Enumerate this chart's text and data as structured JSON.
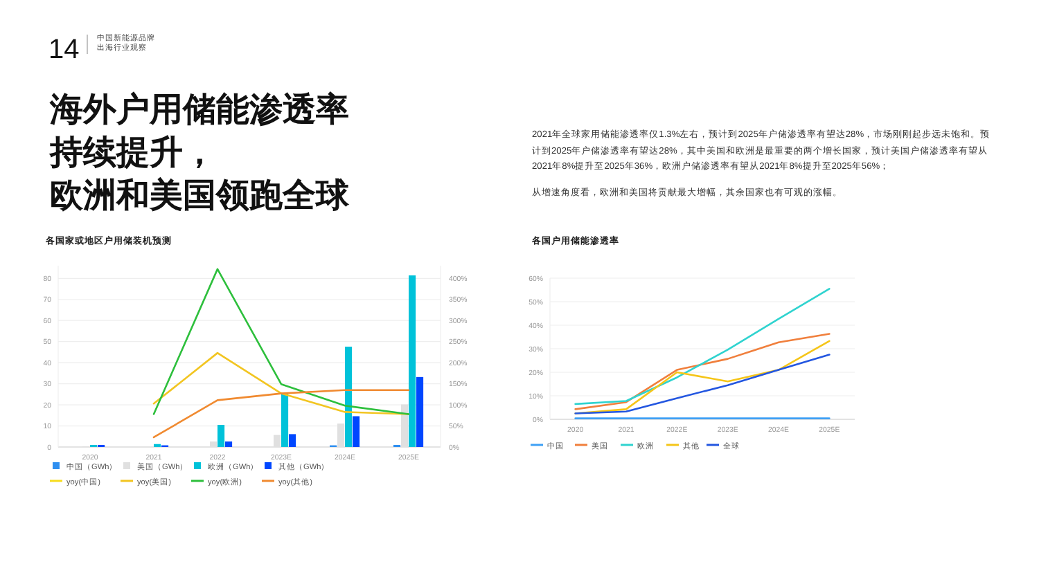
{
  "chart_data": [
    {
      "type": "bar",
      "title": "各国家或地区户用储装机预测",
      "annotations": [
        "14",
        "中国新能源品牌",
        "出海行业观察",
        "海外户用储能渗透率",
        "持续提升，",
        "欧洲和美国领跑全球",
        "2021年全球家用储能渗透率仅1.3%左右，预计到2025年户储渗透率有望达28%，市场刚刚起步远未饱和。预计到2025年户储渗透率有望达28%，其中美国和欧洲是最重要的两个增长国家，预计美国户储渗透率有望从2021年8%提升至2025年36%，欧洲户储渗透率有望从2021年8%提升至2025年56%；",
        "从增速角度看，欧洲和美国将贡献最大增幅，其余国家也有可观的涨幅。"
      ],
      "categories": [
        "2020",
        "2021",
        "2022",
        "2023E",
        "2024E",
        "2025E"
      ],
      "series": [
        {
          "name": "中国（GWh）",
          "color": "#2f8ff0",
          "values": [
            null,
            null,
            null,
            null,
            0.8,
            1.0
          ]
        },
        {
          "name": "美国（GWh）",
          "color": "#e0e0e0",
          "values": [
            0.3,
            null,
            2.6,
            5.7,
            11.1,
            20.2
          ]
        },
        {
          "name": "欧洲（GWh）",
          "color": "#00c2d9",
          "values": [
            1.0,
            1.4,
            10.5,
            25.3,
            47.6,
            81.4
          ]
        },
        {
          "name": "其他（GWh）",
          "color": "#0047ff",
          "values": [
            1.0,
            0.8,
            2.6,
            6.1,
            14.6,
            33.2
          ]
        },
        {
          "name": "yoy(中国)",
          "type": "line",
          "axis": "y2",
          "color": "#f7dc1e",
          "values": [
            null,
            null,
            null,
            null,
            null,
            null
          ]
        },
        {
          "name": "yoy(美国)",
          "type": "line",
          "axis": "y2",
          "color": "#f2c521",
          "values": [
            null,
            103,
            223,
            127,
            83,
            78
          ]
        },
        {
          "name": "yoy(欧洲)",
          "type": "line",
          "axis": "y2",
          "color": "#2dbf3c",
          "values": [
            null,
            78,
            422,
            149,
            98,
            78
          ]
        },
        {
          "name": "yoy(其他)",
          "type": "line",
          "axis": "y2",
          "color": "#f08a30",
          "values": [
            null,
            23,
            111,
            127,
            135,
            135
          ]
        }
      ],
      "ylim": [
        0,
        86
      ],
      "yticks": [
        0,
        10,
        20,
        30,
        40,
        50,
        60,
        70,
        80
      ],
      "y2lim": [
        0,
        430
      ],
      "y2ticks": [
        {
          "value": 0,
          "label": "0%"
        },
        {
          "value": 50,
          "label": "50%"
        },
        {
          "value": 100,
          "label": "100%"
        },
        {
          "value": 150,
          "label": "150%"
        },
        {
          "value": 200,
          "label": "200%"
        },
        {
          "value": 250,
          "label": "250%"
        },
        {
          "value": 300,
          "label": "300%"
        },
        {
          "value": 350,
          "label": "350%"
        },
        {
          "value": 400,
          "label": "400%"
        }
      ],
      "grid": "y",
      "legend": "bottom"
    },
    {
      "type": "line",
      "title": "各国户用储能渗透率",
      "categories": [
        "2020",
        "2021",
        "2022E",
        "2023E",
        "2024E",
        "2025E"
      ],
      "series": [
        {
          "name": "中国",
          "color": "#3ea0f5",
          "values": [
            0.4,
            0.4,
            0.4,
            0.4,
            0.4,
            0.4
          ]
        },
        {
          "name": "美国",
          "color": "#f07f3c",
          "values": [
            4.3,
            7.3,
            21,
            25.7,
            32.7,
            36.3
          ]
        },
        {
          "name": "欧洲",
          "color": "#2fd3cf",
          "values": [
            6.5,
            7.8,
            17.8,
            29.6,
            42.7,
            55.5
          ]
        },
        {
          "name": "其他",
          "color": "#f5c518",
          "values": [
            2.5,
            4.3,
            20,
            16.1,
            21,
            33.3
          ]
        },
        {
          "name": "全球",
          "color": "#2356e0",
          "values": [
            2.5,
            3.3,
            9,
            14.5,
            21,
            27.5
          ]
        }
      ],
      "ylim": [
        0,
        60
      ],
      "yticks": [
        {
          "value": 0,
          "label": "0%"
        },
        {
          "value": 10,
          "label": "10%"
        },
        {
          "value": 20,
          "label": "20%"
        },
        {
          "value": 30,
          "label": "30%"
        },
        {
          "value": 40,
          "label": "40%"
        },
        {
          "value": 50,
          "label": "50%"
        },
        {
          "value": 60,
          "label": "60%"
        }
      ],
      "grid": "y",
      "legend": "bottom",
      "marker": "none"
    }
  ]
}
